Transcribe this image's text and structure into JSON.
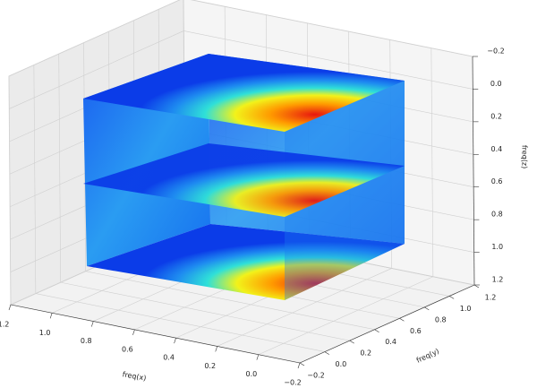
{
  "chart_data": {
    "type": "scatter3d",
    "xlabel": "freq(x)",
    "ylabel": "freq(y)",
    "zlabel": "freq(z)",
    "xlim": [
      -0.2,
      1.2
    ],
    "ylim": [
      -0.2,
      1.2
    ],
    "zlim": [
      -0.2,
      1.2
    ],
    "zinverted": true,
    "xticks": [
      {
        "value": -0.2,
        "label": "−0.2"
      },
      {
        "value": 0,
        "label": "0.0"
      },
      0.2,
      0.4,
      0.6,
      0.8,
      {
        "value": 1,
        "label": "1.0"
      },
      1.2
    ],
    "yticks": [
      {
        "value": -0.2,
        "label": "−0.2"
      },
      {
        "value": 0,
        "label": "0.0"
      },
      0.2,
      0.4,
      0.6,
      0.8,
      {
        "value": 1,
        "label": "1.0"
      },
      1.2
    ],
    "zticks": [
      {
        "value": -0.2,
        "label": "−0.2"
      },
      {
        "value": 0,
        "label": "0.0"
      },
      0.2,
      0.4,
      0.6,
      0.8,
      {
        "value": 1,
        "label": "1.0"
      },
      1.2
    ],
    "grid": true
  }
}
